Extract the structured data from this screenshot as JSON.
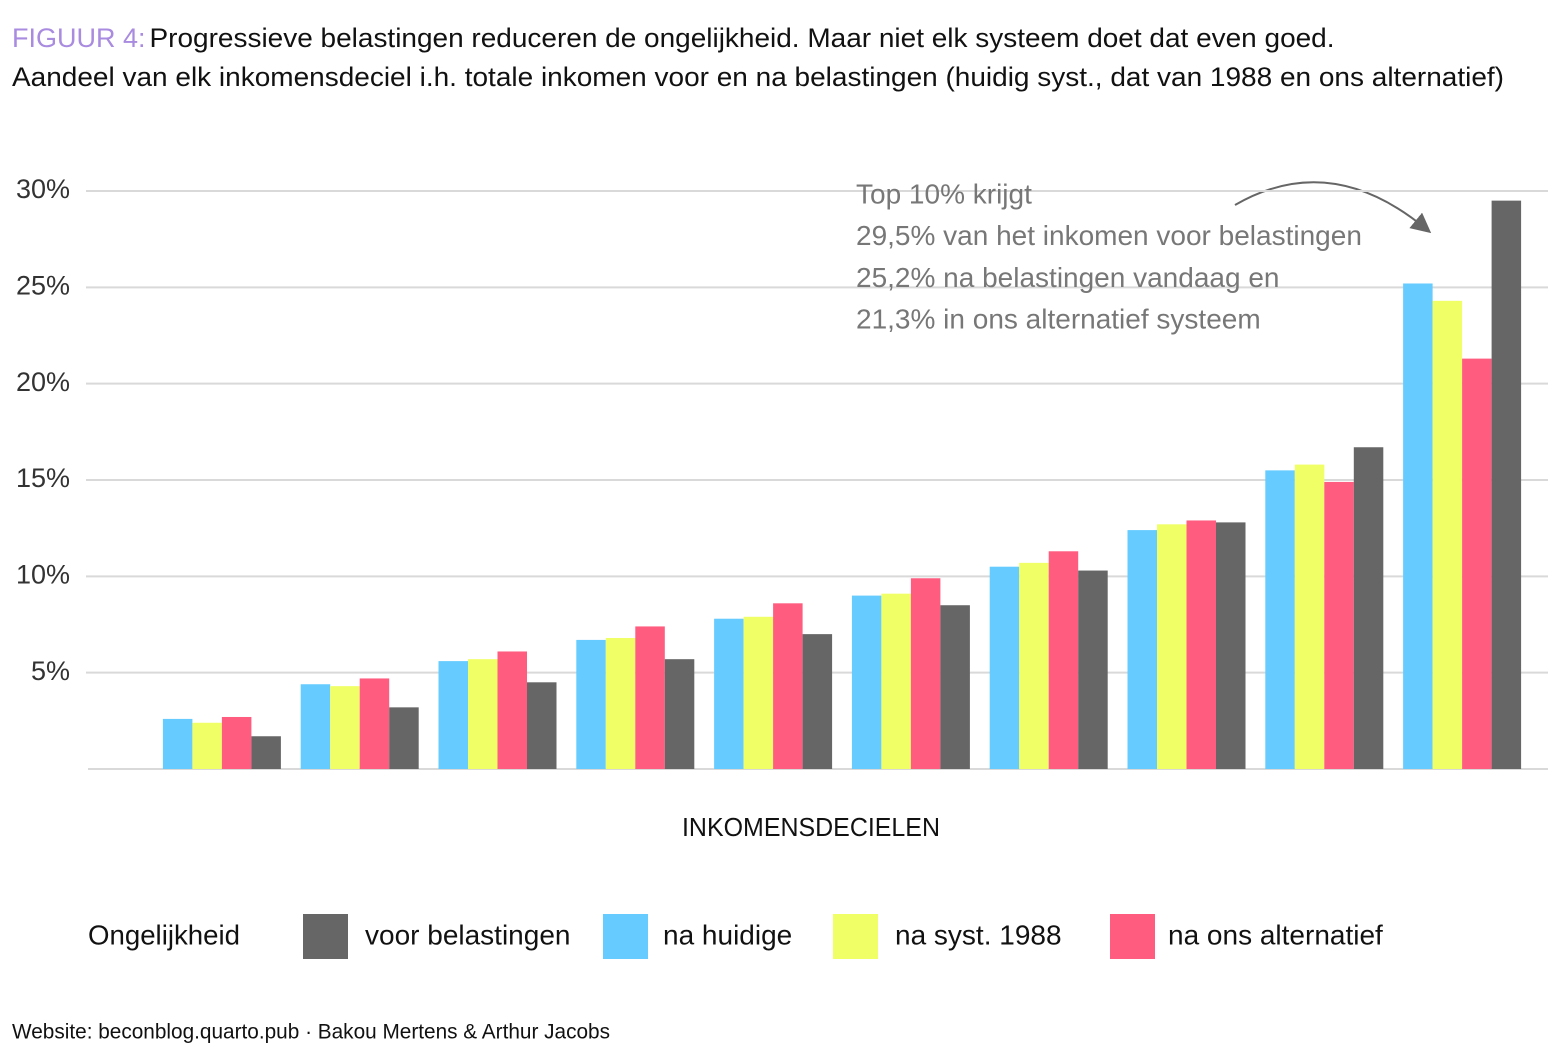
{
  "chart_data": {
    "type": "bar",
    "title_label": "FIGUUR 4:",
    "title": "Progressieve belastingen reduceren de ongelijkheid. Maar niet elk systeem doet dat even goed.",
    "subtitle": "Aandeel van elk inkomensdeciel i.h. totale inkomen voor en na belastingen (huidig syst., dat van 1988 en ons alternatief)",
    "x_label": "INKOMENSDECIELEN",
    "legend_title": "Ongelijkheid",
    "annotation": [
      "Top 10% krijgt",
      "29,5% van het inkomen voor belastingen",
      "25,2% na belastingen vandaag en",
      "21,3% in ons alternatief systeem"
    ],
    "source": "Website: beconblog.quarto.pub · Bakou Mertens & Arthur Jacobs",
    "categories": [
      null,
      null,
      null,
      null,
      null,
      null,
      null,
      null,
      null,
      null
    ],
    "series": [
      {
        "name": "voor belastingen",
        "color": "#666666",
        "values": [
          1.7,
          3.2,
          4.5,
          5.7,
          7.0,
          8.5,
          10.3,
          12.8,
          16.7,
          29.5
        ]
      },
      {
        "name": "na huidige",
        "color": "#66ccff",
        "values": [
          2.6,
          4.4,
          5.6,
          6.7,
          7.8,
          9.0,
          10.5,
          12.4,
          15.5,
          25.2
        ]
      },
      {
        "name": "na syst. 1988",
        "color": "#f0ff66",
        "values": [
          2.4,
          4.3,
          5.7,
          6.8,
          7.9,
          9.1,
          10.7,
          12.7,
          15.8,
          24.3
        ]
      },
      {
        "name": "na ons alternatief",
        "color": "#ff5c80",
        "values": [
          2.7,
          4.7,
          6.1,
          7.4,
          8.6,
          9.9,
          11.3,
          12.9,
          14.9,
          21.3
        ]
      }
    ],
    "ylim": [
      0,
      30
    ],
    "yticks": [
      {
        "value": 5,
        "label": "5%"
      },
      {
        "value": 10,
        "label": "10%"
      },
      {
        "value": 15,
        "label": "15%"
      },
      {
        "value": 20,
        "label": "20%"
      },
      {
        "value": 25,
        "label": "25%"
      },
      {
        "value": 30,
        "label": "30%"
      }
    ],
    "grid": true
  }
}
